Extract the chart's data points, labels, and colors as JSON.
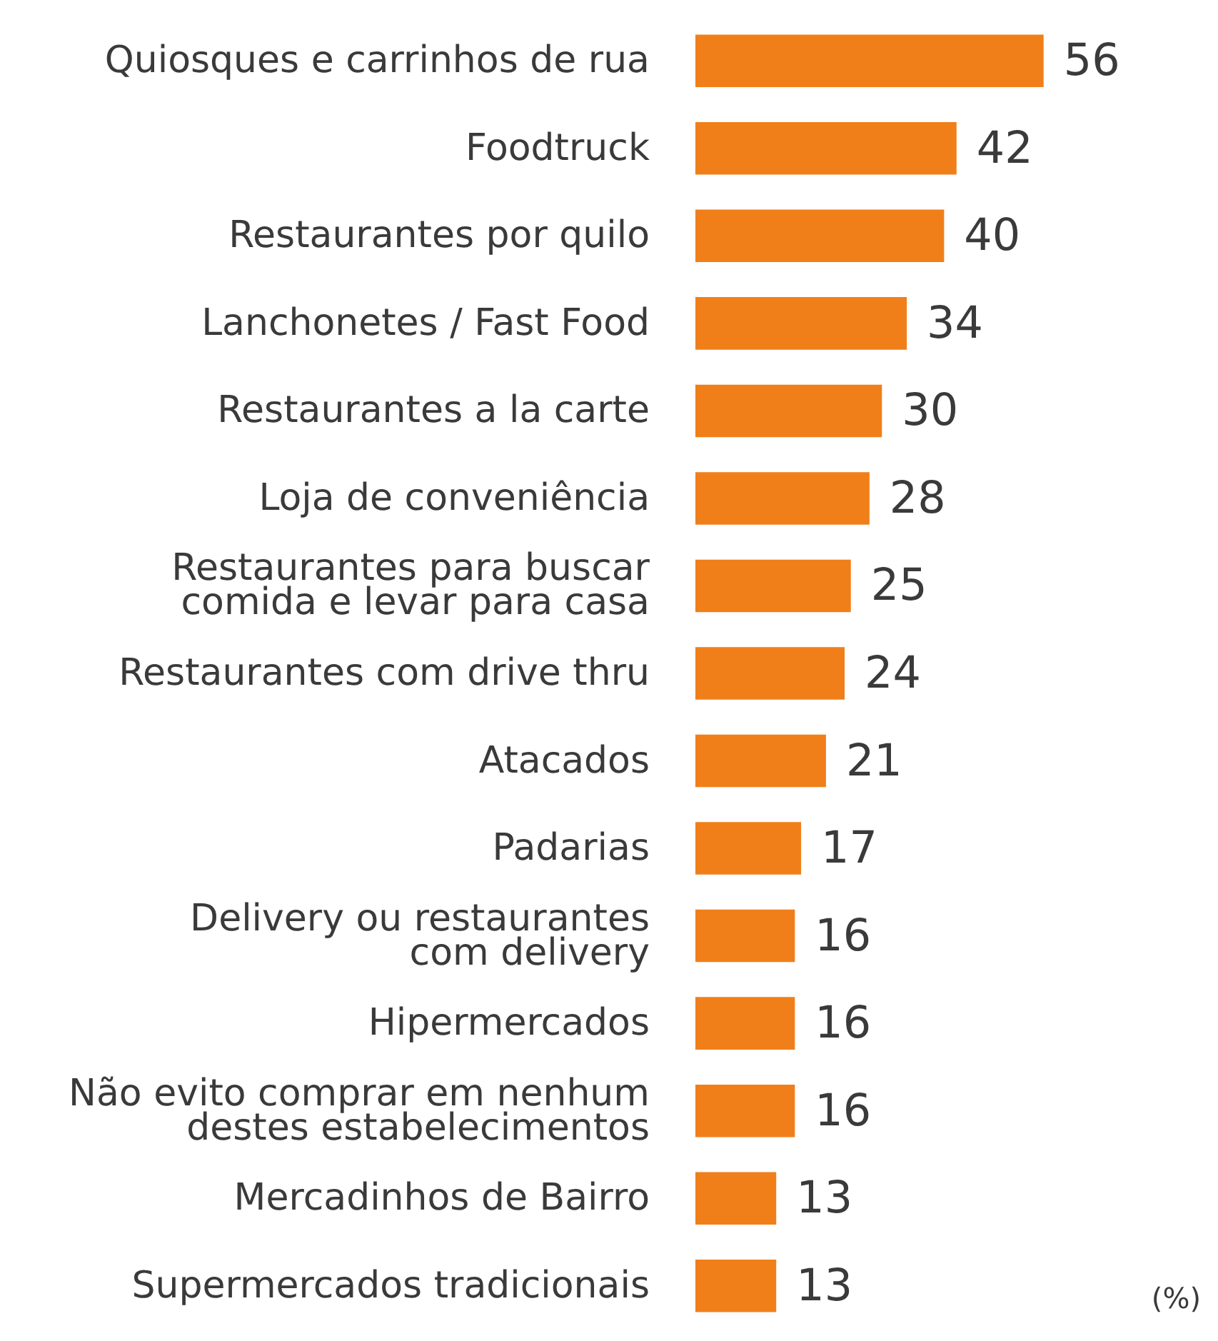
{
  "chart_data": {
    "type": "bar",
    "orientation": "horizontal",
    "categories": [
      "Quiosques e carrinhos de rua",
      "Foodtruck",
      "Restaurantes por quilo",
      "Lanchonetes / Fast Food",
      "Restaurantes a la carte",
      "Loja de conveniência",
      "Restaurantes para buscar\ncomida e levar para casa",
      "Restaurantes com drive thru",
      "Atacados",
      "Padarias",
      "Delivery ou restaurantes\ncom delivery",
      "Hipermercados",
      "Não evito comprar em nenhum\ndestes estabelecimentos",
      "Mercadinhos de Bairro",
      "Supermercados tradicionais"
    ],
    "values": [
      56,
      42,
      40,
      34,
      30,
      28,
      25,
      24,
      21,
      17,
      16,
      16,
      16,
      13,
      13
    ],
    "color": "#f07f1a",
    "data_labels": true,
    "annotations": [
      "(%)"
    ]
  }
}
